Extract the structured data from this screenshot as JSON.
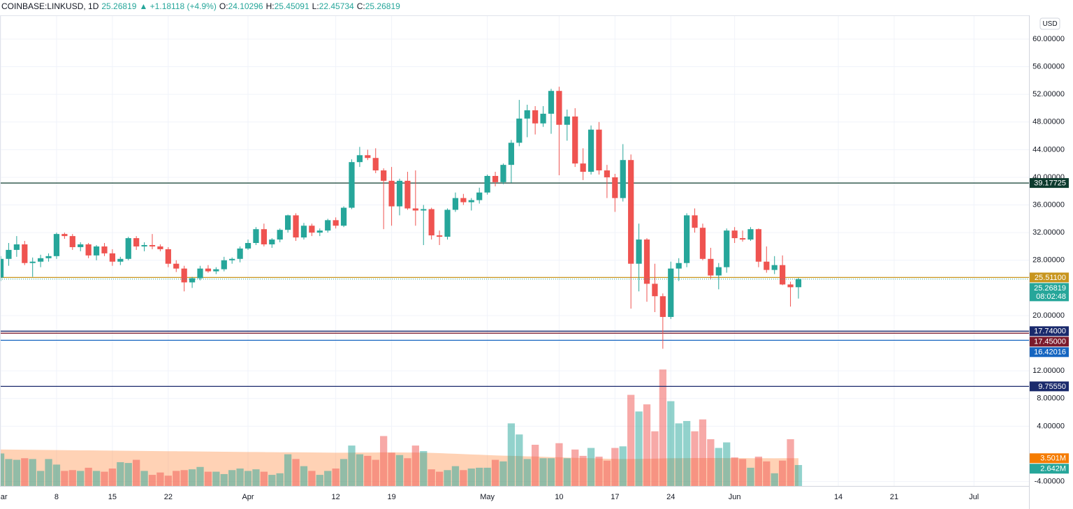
{
  "chart_data": {
    "type": "candlestick",
    "header": {
      "symbol": "COINBASE:LINKUSD, 1D",
      "change": "+1.18118 (+4.9%)",
      "o": "O:",
      "h": "H:",
      "l": "L:",
      "c": "C:"
    },
    "currency": "USD",
    "up_color": "#26a69a",
    "down_color": "#ef5350",
    "candles": [
      [
        25.5,
        28.6,
        25.0,
        28.2
      ],
      [
        28.2,
        30.5,
        27.2,
        29.5
      ],
      [
        29.5,
        31.5,
        28.5,
        30.3
      ],
      [
        30.3,
        30.8,
        27.3,
        27.6
      ],
      [
        27.6,
        28.4,
        25.6,
        27.8
      ],
      [
        27.8,
        28.8,
        27.0,
        28.3
      ],
      [
        28.3,
        29.0,
        27.8,
        28.6
      ],
      [
        28.6,
        32.0,
        28.2,
        31.8
      ],
      [
        31.8,
        32.0,
        31.1,
        31.5
      ],
      [
        31.5,
        31.8,
        29.5,
        29.9
      ],
      [
        29.9,
        30.6,
        29.3,
        30.3
      ],
      [
        30.3,
        30.5,
        28.3,
        28.7
      ],
      [
        28.7,
        30.2,
        28.0,
        30.0
      ],
      [
        30.0,
        30.5,
        28.6,
        29.0
      ],
      [
        29.0,
        29.6,
        27.2,
        27.8
      ],
      [
        27.8,
        28.5,
        27.3,
        28.2
      ],
      [
        28.2,
        31.4,
        28.0,
        31.2
      ],
      [
        31.2,
        31.5,
        29.5,
        30.0
      ],
      [
        30.0,
        30.6,
        29.3,
        30.2
      ],
      [
        30.2,
        31.8,
        29.6,
        30.0
      ],
      [
        30.0,
        30.3,
        29.3,
        29.6
      ],
      [
        29.6,
        29.9,
        27.0,
        27.5
      ],
      [
        27.5,
        28.0,
        26.3,
        26.8
      ],
      [
        26.8,
        27.2,
        23.5,
        24.8
      ],
      [
        24.8,
        25.6,
        24.0,
        25.4
      ],
      [
        25.4,
        27.2,
        25.1,
        26.8
      ],
      [
        26.8,
        27.3,
        26.2,
        26.4
      ],
      [
        26.4,
        27.0,
        26.0,
        26.7
      ],
      [
        26.7,
        28.5,
        26.4,
        28.0
      ],
      [
        28.0,
        28.4,
        27.5,
        28.2
      ],
      [
        28.2,
        30.0,
        27.7,
        29.7
      ],
      [
        29.7,
        31.0,
        29.5,
        30.5
      ],
      [
        30.5,
        32.8,
        30.2,
        32.5
      ],
      [
        32.5,
        33.3,
        30.0,
        30.3
      ],
      [
        30.3,
        31.2,
        29.8,
        31.0
      ],
      [
        31.0,
        32.6,
        30.6,
        32.4
      ],
      [
        32.4,
        34.6,
        32.0,
        34.5
      ],
      [
        34.5,
        34.8,
        30.8,
        31.3
      ],
      [
        31.3,
        33.4,
        31.0,
        33.0
      ],
      [
        33.0,
        33.3,
        31.5,
        32.0
      ],
      [
        32.0,
        32.6,
        31.5,
        32.3
      ],
      [
        32.3,
        34.0,
        32.0,
        33.8
      ],
      [
        33.8,
        34.2,
        32.6,
        33.0
      ],
      [
        33.0,
        35.8,
        32.8,
        35.6
      ],
      [
        35.6,
        42.6,
        35.4,
        42.2
      ],
      [
        42.2,
        44.4,
        41.5,
        43.2
      ],
      [
        43.2,
        44.0,
        42.5,
        42.8
      ],
      [
        42.8,
        44.2,
        40.6,
        41.0
      ],
      [
        41.0,
        41.3,
        32.5,
        39.5
      ],
      [
        39.5,
        41.5,
        33.0,
        35.8
      ],
      [
        35.8,
        39.8,
        34.5,
        39.5
      ],
      [
        39.5,
        40.8,
        35.3,
        35.5
      ],
      [
        35.5,
        41.0,
        33.0,
        35.2
      ],
      [
        35.2,
        36.0,
        30.2,
        35.4
      ],
      [
        35.4,
        35.6,
        31.0,
        31.6
      ],
      [
        31.6,
        32.3,
        30.2,
        31.4
      ],
      [
        31.4,
        35.5,
        31.0,
        35.3
      ],
      [
        35.3,
        37.8,
        35.0,
        37.0
      ],
      [
        37.0,
        37.6,
        36.0,
        36.4
      ],
      [
        36.4,
        37.0,
        35.2,
        36.7
      ],
      [
        36.7,
        38.5,
        36.2,
        37.8
      ],
      [
        37.8,
        40.4,
        37.5,
        40.2
      ],
      [
        40.2,
        40.8,
        38.7,
        39.3
      ],
      [
        39.3,
        42.0,
        39.0,
        41.8
      ],
      [
        41.8,
        45.4,
        39.2,
        45.0
      ],
      [
        45.0,
        51.2,
        44.5,
        48.5
      ],
      [
        48.5,
        50.5,
        45.8,
        49.7
      ],
      [
        49.7,
        50.3,
        46.2,
        47.8
      ],
      [
        47.8,
        50.3,
        47.3,
        49.2
      ],
      [
        49.2,
        52.8,
        46.3,
        52.5
      ],
      [
        52.5,
        53.1,
        40.3,
        47.6
      ],
      [
        47.6,
        49.8,
        45.3,
        48.8
      ],
      [
        48.8,
        50.0,
        41.5,
        42.0
      ],
      [
        42.0,
        44.2,
        39.6,
        40.8
      ],
      [
        40.8,
        47.5,
        40.4,
        46.9
      ],
      [
        46.9,
        48.0,
        40.4,
        41.0
      ],
      [
        41.0,
        41.8,
        37.0,
        40.0
      ],
      [
        40.0,
        40.5,
        35.0,
        37.0
      ],
      [
        37.0,
        44.8,
        36.5,
        42.5
      ],
      [
        42.5,
        43.3,
        21.0,
        27.5
      ],
      [
        27.5,
        33.3,
        23.5,
        31.0
      ],
      [
        31.0,
        31.2,
        22.0,
        24.6
      ],
      [
        24.6,
        27.5,
        20.5,
        22.8
      ],
      [
        22.8,
        23.2,
        15.2,
        19.8
      ],
      [
        19.8,
        27.8,
        19.5,
        26.8
      ],
      [
        26.8,
        28.3,
        25.0,
        27.6
      ],
      [
        27.6,
        34.8,
        27.0,
        34.5
      ],
      [
        34.5,
        35.5,
        32.0,
        32.7
      ],
      [
        32.7,
        33.3,
        28.0,
        28.2
      ],
      [
        28.2,
        29.8,
        25.2,
        25.8
      ],
      [
        25.8,
        27.6,
        23.8,
        27.0
      ],
      [
        27.0,
        32.6,
        26.2,
        32.3
      ],
      [
        32.3,
        32.8,
        30.5,
        31.2
      ],
      [
        31.2,
        32.3,
        30.7,
        31.0
      ],
      [
        31.0,
        32.8,
        30.8,
        32.5
      ],
      [
        32.5,
        32.6,
        27.0,
        27.8
      ],
      [
        27.8,
        30.0,
        26.2,
        26.6
      ],
      [
        26.6,
        28.6,
        26.0,
        27.3
      ],
      [
        27.3,
        28.7,
        24.4,
        24.5
      ],
      [
        24.5,
        24.9,
        21.3,
        24.1
      ],
      [
        24.10296,
        25.45091,
        22.45734,
        25.26819
      ]
    ],
    "volume": {
      "axis": "y2",
      "values": [
        4.1,
        3.4,
        3.3,
        3.5,
        3.4,
        1.9,
        3.4,
        2.7,
        1.9,
        2.0,
        1.9,
        2.3,
        1.9,
        1.8,
        2.2,
        3.0,
        2.9,
        3.3,
        1.9,
        1.4,
        1.7,
        1.3,
        1.9,
        2.0,
        2.1,
        2.4,
        1.8,
        1.8,
        1.5,
        2.0,
        2.2,
        1.9,
        2.1,
        1.8,
        1.4,
        1.6,
        4.0,
        3.4,
        2.5,
        1.9,
        1.4,
        1.9,
        2.2,
        3.4,
        5.1,
        4.0,
        3.8,
        3.3,
        6.3,
        4.2,
        3.9,
        3.5,
        5.1,
        4.4,
        2.1,
        1.8,
        2.0,
        2.5,
        2.0,
        2.2,
        2.3,
        2.3,
        3.3,
        3.1,
        7.9,
        6.5,
        3.4,
        5.2,
        3.5,
        3.5,
        5.4,
        3.5,
        4.6,
        3.8,
        4.8,
        3.7,
        3.2,
        4.8,
        5.0,
        11.5,
        9.4,
        10.3,
        6.9,
        14.7,
        10.7,
        7.9,
        8.2,
        6.9,
        8.4,
        5.9,
        4.8,
        5.5,
        3.6,
        3.4,
        2.3,
        3.7,
        3.1,
        1.6,
        3.2,
        5.9,
        2.642
      ]
    },
    "volume_ma": {
      "axis": "y2",
      "color": "rgba(255,138,61,0.38)",
      "values": [
        4.6,
        4.59,
        4.58,
        4.57,
        4.56,
        4.55,
        4.54,
        4.53,
        4.52,
        4.51,
        4.5,
        4.49,
        4.48,
        4.47,
        4.46,
        4.45,
        4.44,
        4.43,
        4.42,
        4.41,
        4.4,
        4.39,
        4.38,
        4.37,
        4.36,
        4.35,
        4.34,
        4.33,
        4.32,
        4.31,
        4.3,
        4.29,
        4.28,
        4.27,
        4.26,
        4.25,
        4.25,
        4.25,
        4.24,
        4.23,
        4.22,
        4.21,
        4.2,
        4.2,
        4.21,
        4.22,
        4.22,
        4.22,
        4.24,
        4.24,
        4.23,
        4.22,
        4.22,
        4.21,
        4.18,
        4.14,
        4.1,
        4.06,
        4.02,
        3.98,
        3.94,
        3.9,
        3.86,
        3.82,
        3.8,
        3.78,
        3.74,
        3.72,
        3.68,
        3.64,
        3.62,
        3.58,
        3.55,
        3.52,
        3.5,
        3.47,
        3.44,
        3.42,
        3.4,
        3.4,
        3.42,
        3.44,
        3.45,
        3.48,
        3.5,
        3.5,
        3.51,
        3.52,
        3.52,
        3.52,
        3.52,
        3.51,
        3.51,
        3.51,
        3.5,
        3.5,
        3.5,
        3.49,
        3.5,
        3.5,
        3.501
      ]
    },
    "volume_ma_label": {
      "value": 3.501,
      "label": "3.501M",
      "color": "#f57c00"
    },
    "volume_label": {
      "value": 2.642,
      "label": "2.642M",
      "color": "#26a69a"
    },
    "last_price": {
      "countdown": "08:02:48",
      "color": "#26a69a"
    },
    "price_lines": [
      {
        "value": 39.17725,
        "color": "#0d3b2e"
      },
      {
        "value": 25.511,
        "label": "25.51100",
        "color": "#c8951e"
      },
      {
        "value": 17.74,
        "label": "17.74000",
        "color": "#1a2a6c"
      },
      {
        "value": 17.45,
        "label": "17.45000",
        "color": "#7b1a2c"
      },
      {
        "value": 16.42016,
        "color": "#1565c0"
      },
      {
        "value": 9.7555,
        "label": "9.75550",
        "color": "#1a2a6c"
      }
    ],
    "xlim": [
      -0.09,
      128.9
    ],
    "xticks": [
      {
        "value": 0,
        "label": "Mar"
      },
      {
        "value": 7,
        "label": "8"
      },
      {
        "value": 14,
        "label": "15"
      },
      {
        "value": 21,
        "label": "22"
      },
      {
        "value": 31,
        "label": "Apr"
      },
      {
        "value": 42,
        "label": "12"
      },
      {
        "value": 49,
        "label": "19"
      },
      {
        "value": 61,
        "label": "May"
      },
      {
        "value": 70,
        "label": "10"
      },
      {
        "value": 77,
        "label": "17"
      },
      {
        "value": 84,
        "label": "24"
      },
      {
        "value": 92,
        "label": "Jun"
      },
      {
        "value": 105,
        "label": "14"
      },
      {
        "value": 112,
        "label": "21"
      },
      {
        "value": 122,
        "label": "Jul"
      }
    ],
    "ylim": [
      -4.65,
      63.43
    ],
    "yticks": [
      {
        "value": 60,
        "label": "60.00000"
      },
      {
        "value": 56,
        "label": "56.00000"
      },
      {
        "value": 52,
        "label": "52.00000"
      },
      {
        "value": 48,
        "label": "48.00000"
      },
      {
        "value": 44,
        "label": "44.00000"
      },
      {
        "value": 40,
        "label": "40.00000"
      },
      {
        "value": 36,
        "label": "36.00000"
      },
      {
        "value": 32,
        "label": "32.00000"
      },
      {
        "value": 28,
        "label": "28.00000"
      },
      {
        "value": 20,
        "label": "20.00000"
      },
      {
        "value": 12,
        "label": "12.00000"
      },
      {
        "value": 8,
        "label": "8.00000"
      },
      {
        "value": 4,
        "label": "4.00000"
      },
      {
        "value": -4,
        "label": "-4.00000"
      }
    ],
    "y2lim": [
      0,
      59.4
    ],
    "grid": true
  }
}
